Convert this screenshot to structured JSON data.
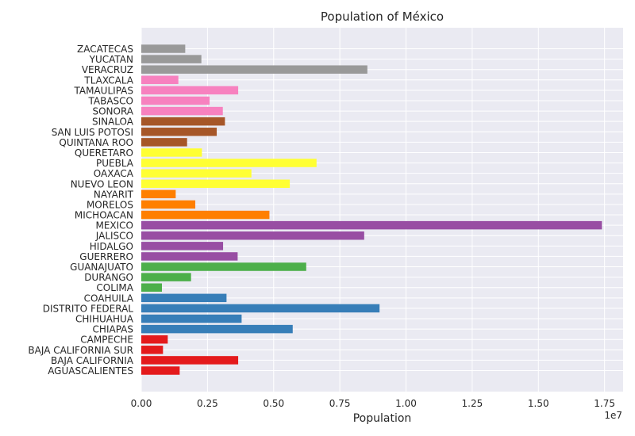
{
  "chart_data": {
    "type": "bar",
    "orientation": "horizontal",
    "title": "Population of México",
    "xlabel": "Population",
    "ylabel": "",
    "x_offset_label": "1e7",
    "xlim": [
      0,
      18200000
    ],
    "xticks": [
      0,
      2500000,
      5000000,
      7500000,
      10000000,
      12500000,
      15000000,
      17500000
    ],
    "xtick_labels": [
      "0.00",
      "0.25",
      "0.50",
      "0.75",
      "1.00",
      "1.25",
      "1.50",
      "1.75"
    ],
    "grid": true,
    "background": "#eaeaf2",
    "categories": [
      "AGUASCALIENTES",
      "BAJA CALIFORNIA",
      "BAJA CALIFORNIA SUR",
      "CAMPECHE",
      "CHIAPAS",
      "CHIHUAHUA",
      "DISTRITO FEDERAL",
      "COAHUILA",
      "COLIMA",
      "DURANGO",
      "GUANAJUATO",
      "GUERRERO",
      "HIDALGO",
      "JALISCO",
      "MEXICO",
      "MICHOACAN",
      "MORELOS",
      "NAYARIT",
      "NUEVO LEON",
      "OAXACA",
      "PUEBLA",
      "QUERETARO",
      "QUINTANA ROO",
      "SAN LUIS POTOSI",
      "SINALOA",
      "SONORA",
      "TABASCO",
      "TAMAULIPAS",
      "TLAXCALA",
      "VERACRUZ",
      "YUCATAN",
      "ZACATECAS"
    ],
    "values": [
      1450000,
      3660000,
      820000,
      1000000,
      5720000,
      3790000,
      9000000,
      3220000,
      780000,
      1880000,
      6230000,
      3640000,
      3090000,
      8420000,
      17400000,
      4840000,
      2040000,
      1300000,
      5610000,
      4160000,
      6620000,
      2290000,
      1730000,
      2850000,
      3160000,
      3080000,
      2580000,
      3660000,
      1400000,
      8540000,
      2270000,
      1660000
    ],
    "colors": [
      "#e41a1c",
      "#e41a1c",
      "#e41a1c",
      "#e41a1c",
      "#377eb8",
      "#377eb8",
      "#377eb8",
      "#377eb8",
      "#4daf4a",
      "#4daf4a",
      "#4daf4a",
      "#984ea3",
      "#984ea3",
      "#984ea3",
      "#984ea3",
      "#ff7f00",
      "#ff7f00",
      "#ff7f00",
      "#ffff33",
      "#ffff33",
      "#ffff33",
      "#ffff33",
      "#a65628",
      "#a65628",
      "#a65628",
      "#f781bf",
      "#f781bf",
      "#f781bf",
      "#f781bf",
      "#999999",
      "#999999",
      "#999999"
    ]
  }
}
